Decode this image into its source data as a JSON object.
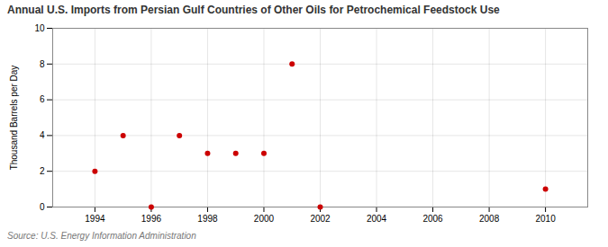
{
  "chart_data": {
    "type": "scatter",
    "title": "Annual U.S. Imports from Persian Gulf Countries of Other Oils for Petrochemical Feedstock Use",
    "ylabel": "Thousand Barrels per Day",
    "source": "Source: U.S. Energy Information Administration",
    "x": [
      1994,
      1995,
      1996,
      1997,
      1998,
      1999,
      2000,
      2001,
      2002,
      2010
    ],
    "values": [
      2,
      4,
      0,
      4,
      3,
      3,
      3,
      8,
      0,
      1
    ],
    "color": "#cc0000",
    "xlim": [
      1992.5,
      2011.5
    ],
    "ylim": [
      0,
      10
    ],
    "xticks": [
      1994,
      1996,
      1998,
      2000,
      2002,
      2004,
      2006,
      2008,
      2010
    ],
    "yticks": [
      0,
      2,
      4,
      6,
      8,
      10
    ],
    "grid": true
  }
}
